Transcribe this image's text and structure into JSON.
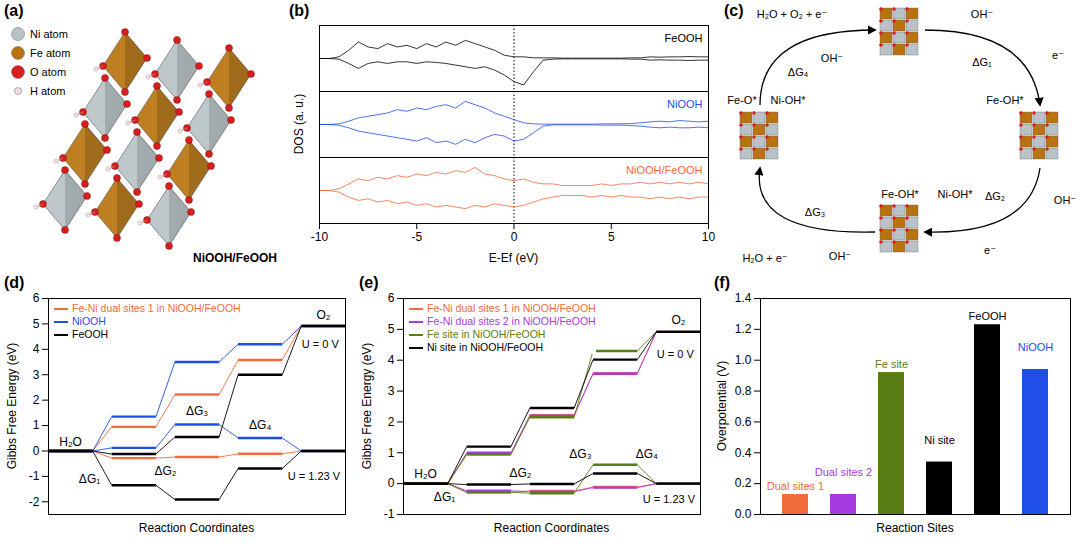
{
  "chart_data": [
    {
      "panel": "(a)",
      "type": "diagram",
      "atoms": [
        {
          "name": "Ni atom",
          "color": "#b9c3c7"
        },
        {
          "name": "Fe atom",
          "color": "#b8730f"
        },
        {
          "name": "O atom",
          "color": "#d81e1e"
        },
        {
          "name": "H atom",
          "color": "#f4dede"
        }
      ],
      "caption": "NiOOH/FeOOH",
      "legend": "top-left"
    },
    {
      "panel": "(b)",
      "type": "line",
      "xlabel": "E-Ef (eV)",
      "ylabel": "DOS (a. u.)",
      "xlim": [
        -10,
        10
      ],
      "xticks": [
        -10,
        -5,
        0,
        5,
        10
      ],
      "ylim": [
        -1,
        1
      ],
      "tick_labels": "x",
      "reference_x": 0,
      "x": [
        -10,
        -9.5,
        -9,
        -8.5,
        -8,
        -7.5,
        -7,
        -6.5,
        -6,
        -5.5,
        -5,
        -4.5,
        -4,
        -3.5,
        -3,
        -2.5,
        -2,
        -1.5,
        -1,
        -0.5,
        0,
        0.5,
        1,
        1.5,
        2,
        2.5,
        3,
        3.5,
        4,
        4.5,
        5,
        5.5,
        6,
        6.5,
        7,
        7.5,
        8,
        8.5,
        9,
        9.5,
        10
      ],
      "panels": [
        {
          "name": "FeOOH",
          "color": "#000000",
          "up": [
            0,
            0,
            0.05,
            0.25,
            0.5,
            0.35,
            0.3,
            0.45,
            0.35,
            0.4,
            0.3,
            0.45,
            0.35,
            0.5,
            0.4,
            0.55,
            0.45,
            0.35,
            0.25,
            0.1,
            0.05,
            0.05,
            0.02,
            0.02,
            0.02,
            0.01,
            0.01,
            0.01,
            0.01,
            0.01,
            0.01,
            0.01,
            0.02,
            0.02,
            0.05,
            0.04,
            0.05,
            0.05,
            0.06,
            0.05,
            0.05
          ],
          "down": [
            0,
            0,
            -0.02,
            -0.15,
            -0.3,
            -0.15,
            -0.1,
            -0.15,
            -0.1,
            -0.1,
            -0.15,
            -0.1,
            -0.12,
            -0.15,
            -0.2,
            -0.25,
            -0.3,
            -0.25,
            -0.35,
            -0.5,
            -0.7,
            -0.8,
            -0.4,
            -0.05,
            -0.02,
            -0.01,
            -0.01,
            -0.01,
            -0.01,
            -0.01,
            -0.01,
            -0.01,
            -0.02,
            -0.02,
            -0.05,
            -0.04,
            -0.05,
            -0.05,
            -0.06,
            -0.05,
            -0.05
          ]
        },
        {
          "name": "NiOOH",
          "color": "#1f4ee8",
          "up": [
            0,
            0,
            0.02,
            0.1,
            0.2,
            0.25,
            0.3,
            0.35,
            0.45,
            0.4,
            0.5,
            0.45,
            0.55,
            0.6,
            0.5,
            0.7,
            0.6,
            0.5,
            0.35,
            0.25,
            0.15,
            0.05,
            0.02,
            0.01,
            0.01,
            0.01,
            0.01,
            0.01,
            0.01,
            0.02,
            0.02,
            0.02,
            0.03,
            0.05,
            0.08,
            0.1,
            0.08,
            0.12,
            0.1,
            0.08,
            0.1
          ],
          "down": [
            0,
            0,
            -0.02,
            -0.1,
            -0.2,
            -0.25,
            -0.3,
            -0.35,
            -0.4,
            -0.45,
            -0.5,
            -0.4,
            -0.55,
            -0.5,
            -0.6,
            -0.45,
            -0.55,
            -0.4,
            -0.3,
            -0.35,
            -0.5,
            -0.45,
            -0.25,
            -0.05,
            -0.01,
            -0.01,
            -0.01,
            -0.01,
            -0.01,
            -0.02,
            -0.02,
            -0.02,
            -0.03,
            -0.05,
            -0.08,
            -0.1,
            -0.08,
            -0.1,
            -0.1,
            -0.08,
            -0.1
          ]
        },
        {
          "name": "NiOOH/FeOOH",
          "color": "#f26b3a",
          "up": [
            0,
            0,
            0.05,
            0.2,
            0.35,
            0.3,
            0.4,
            0.35,
            0.45,
            0.4,
            0.5,
            0.45,
            0.55,
            0.5,
            0.6,
            0.55,
            0.7,
            0.5,
            0.45,
            0.35,
            0.3,
            0.35,
            0.25,
            0.2,
            0.2,
            0.15,
            0.15,
            0.15,
            0.15,
            0.2,
            0.15,
            0.2,
            0.2,
            0.25,
            0.2,
            0.25,
            0.2,
            0.25,
            0.2,
            0.25,
            0.2
          ],
          "down": [
            0,
            0,
            -0.05,
            -0.2,
            -0.3,
            -0.25,
            -0.35,
            -0.3,
            -0.4,
            -0.35,
            -0.45,
            -0.4,
            -0.5,
            -0.45,
            -0.5,
            -0.55,
            -0.45,
            -0.5,
            -0.4,
            -0.45,
            -0.5,
            -0.45,
            -0.35,
            -0.25,
            -0.2,
            -0.15,
            -0.15,
            -0.15,
            -0.2,
            -0.15,
            -0.2,
            -0.15,
            -0.2,
            -0.2,
            -0.25,
            -0.2,
            -0.25,
            -0.2,
            -0.25,
            -0.2,
            -0.2
          ]
        }
      ]
    },
    {
      "panel": "(c)",
      "type": "cycle",
      "labels": [
        "H₂O + O₂ + e⁻",
        "OH⁻",
        "ΔG₄",
        "Fe-O*",
        "Ni-OH*",
        "OH⁻",
        "ΔG₁",
        "e⁻",
        "Fe-OH*",
        "OH⁻",
        "ΔG₂",
        "e⁻",
        "Fe-OH*",
        "Ni-OH*",
        "ΔG₃",
        "OH⁻",
        "H₂O + e⁻"
      ]
    },
    {
      "panel": "(d)",
      "type": "step",
      "xlabel": "Reaction Coordinates",
      "ylabel": "Gibbs Free Energy (eV)",
      "xlim": [
        -0.35,
        4.35
      ],
      "ylim": [
        -2.5,
        6
      ],
      "yticks": [
        -2,
        -1,
        0,
        1,
        2,
        3,
        4,
        5,
        6
      ],
      "tick_labels": "y",
      "legend": "top-left",
      "conditions": [
        {
          "label": "U = 0 V",
          "x": 3.95,
          "y": 4.2
        },
        {
          "label": "U = 1.23 V",
          "x": 3.85,
          "y": -1.0
        }
      ],
      "annotations": [
        {
          "text": "H₂O",
          "x": 0,
          "y": 0.35
        },
        {
          "text": "O₂",
          "x": 4,
          "y": 5.35
        },
        {
          "text": "ΔG₁",
          "x": 0.3,
          "y": -1.1
        },
        {
          "text": "ΔG₂",
          "x": 1.5,
          "y": -0.8
        },
        {
          "text": "ΔG₃",
          "x": 2.0,
          "y": 1.55
        },
        {
          "text": "ΔG₄",
          "x": 3.0,
          "y": 1.0
        }
      ],
      "series": [
        {
          "name": "Fe-Ni dual sites 1 in NiOOH/FeOOH",
          "color": "#f26b3a",
          "values": [
            [
              0,
              0.95,
              2.22,
              3.58,
              4.92
            ],
            [
              0,
              -0.28,
              -0.24,
              -0.11,
              0
            ]
          ]
        },
        {
          "name": "NiOOH",
          "color": "#1f4ee8",
          "values": [
            [
              0,
              1.35,
              3.5,
              4.2,
              4.92
            ],
            [
              0,
              0.12,
              1.04,
              0.51,
              0
            ]
          ]
        },
        {
          "name": "FeOOH",
          "color": "#000000",
          "values": [
            [
              0,
              -0.12,
              0.55,
              3.0,
              4.92
            ],
            [
              0,
              -1.35,
              -1.91,
              -0.69,
              0
            ]
          ]
        }
      ]
    },
    {
      "panel": "(e)",
      "type": "step",
      "xlabel": "Reaction Coordinates",
      "ylabel": "Gibbs Free Energy (eV)",
      "xlim": [
        -0.35,
        4.35
      ],
      "ylim": [
        -1,
        6
      ],
      "yticks": [
        -1,
        0,
        1,
        2,
        3,
        4,
        5,
        6
      ],
      "tick_labels": "y",
      "legend": "top-left",
      "conditions": [
        {
          "label": "U = 0 V",
          "x": 3.95,
          "y": 4.2
        },
        {
          "label": "U = 1.23 V",
          "x": 3.85,
          "y": -0.5
        }
      ],
      "annotations": [
        {
          "text": "H₂O",
          "x": 0,
          "y": 0.3
        },
        {
          "text": "O₂",
          "x": 4,
          "y": 5.3
        },
        {
          "text": "ΔG₁",
          "x": 0.3,
          "y": -0.45
        },
        {
          "text": "ΔG₂",
          "x": 1.5,
          "y": 0.35
        },
        {
          "text": "ΔG₃",
          "x": 2.45,
          "y": 0.95
        },
        {
          "text": "ΔG₄",
          "x": 3.5,
          "y": 0.95
        }
      ],
      "series": [
        {
          "name": "Fe-Ni dual sites 1 in NiOOH/FeOOH",
          "color": "#f26b3a",
          "values": [
            [
              0,
              0.95,
              2.22,
              3.58,
              4.92
            ],
            [
              0,
              -0.28,
              -0.24,
              -0.11,
              0
            ]
          ]
        },
        {
          "name": "Fe-Ni dual sites 2 in NiOOH/FeOOH",
          "color": "#a63be0",
          "values": [
            [
              0,
              1.0,
              2.2,
              3.56,
              4.92
            ],
            [
              0,
              -0.23,
              -0.26,
              -0.13,
              0
            ]
          ]
        },
        {
          "name": "Fe site in NiOOH/FeOOH",
          "color": "#5b7d16",
          "values": [
            [
              0,
              0.95,
              2.15,
              4.3,
              4.92
            ],
            [
              0,
              -0.28,
              -0.31,
              0.61,
              0
            ]
          ]
        },
        {
          "name": "Ni site in NiOOH/FeOOH",
          "color": "#000000",
          "values": [
            [
              0,
              1.2,
              2.45,
              4.02,
              4.92
            ],
            [
              0,
              -0.03,
              -0.01,
              0.33,
              0
            ]
          ]
        }
      ]
    },
    {
      "panel": "(f)",
      "type": "bar",
      "xlabel": "Reaction Sites",
      "ylabel": "Overpotential (V)",
      "categories": [
        "Dual sites 1",
        "Dual sites 2",
        "Fe site",
        "Ni site",
        "FeOOH",
        "NiOOH"
      ],
      "values": [
        0.13,
        0.13,
        0.92,
        0.34,
        1.23,
        0.94
      ],
      "colors": [
        "#f26b3a",
        "#a63be0",
        "#5b7d16",
        "#000000",
        "#000000",
        "#1f4ee8"
      ],
      "ylim": [
        0,
        1.4
      ],
      "yticks": [
        {
          "value": 0,
          "label": "0.0"
        },
        {
          "value": 0.2,
          "label": "0.2"
        },
        {
          "value": 0.4,
          "label": "0.4"
        },
        {
          "value": 0.6,
          "label": "0.6"
        },
        {
          "value": 0.8,
          "label": "0.8"
        },
        {
          "value": 1,
          "label": "1.0"
        },
        {
          "value": 1.2,
          "label": "1.2"
        },
        {
          "value": 1.4,
          "label": "1.4"
        }
      ],
      "tick_labels": "y"
    }
  ]
}
